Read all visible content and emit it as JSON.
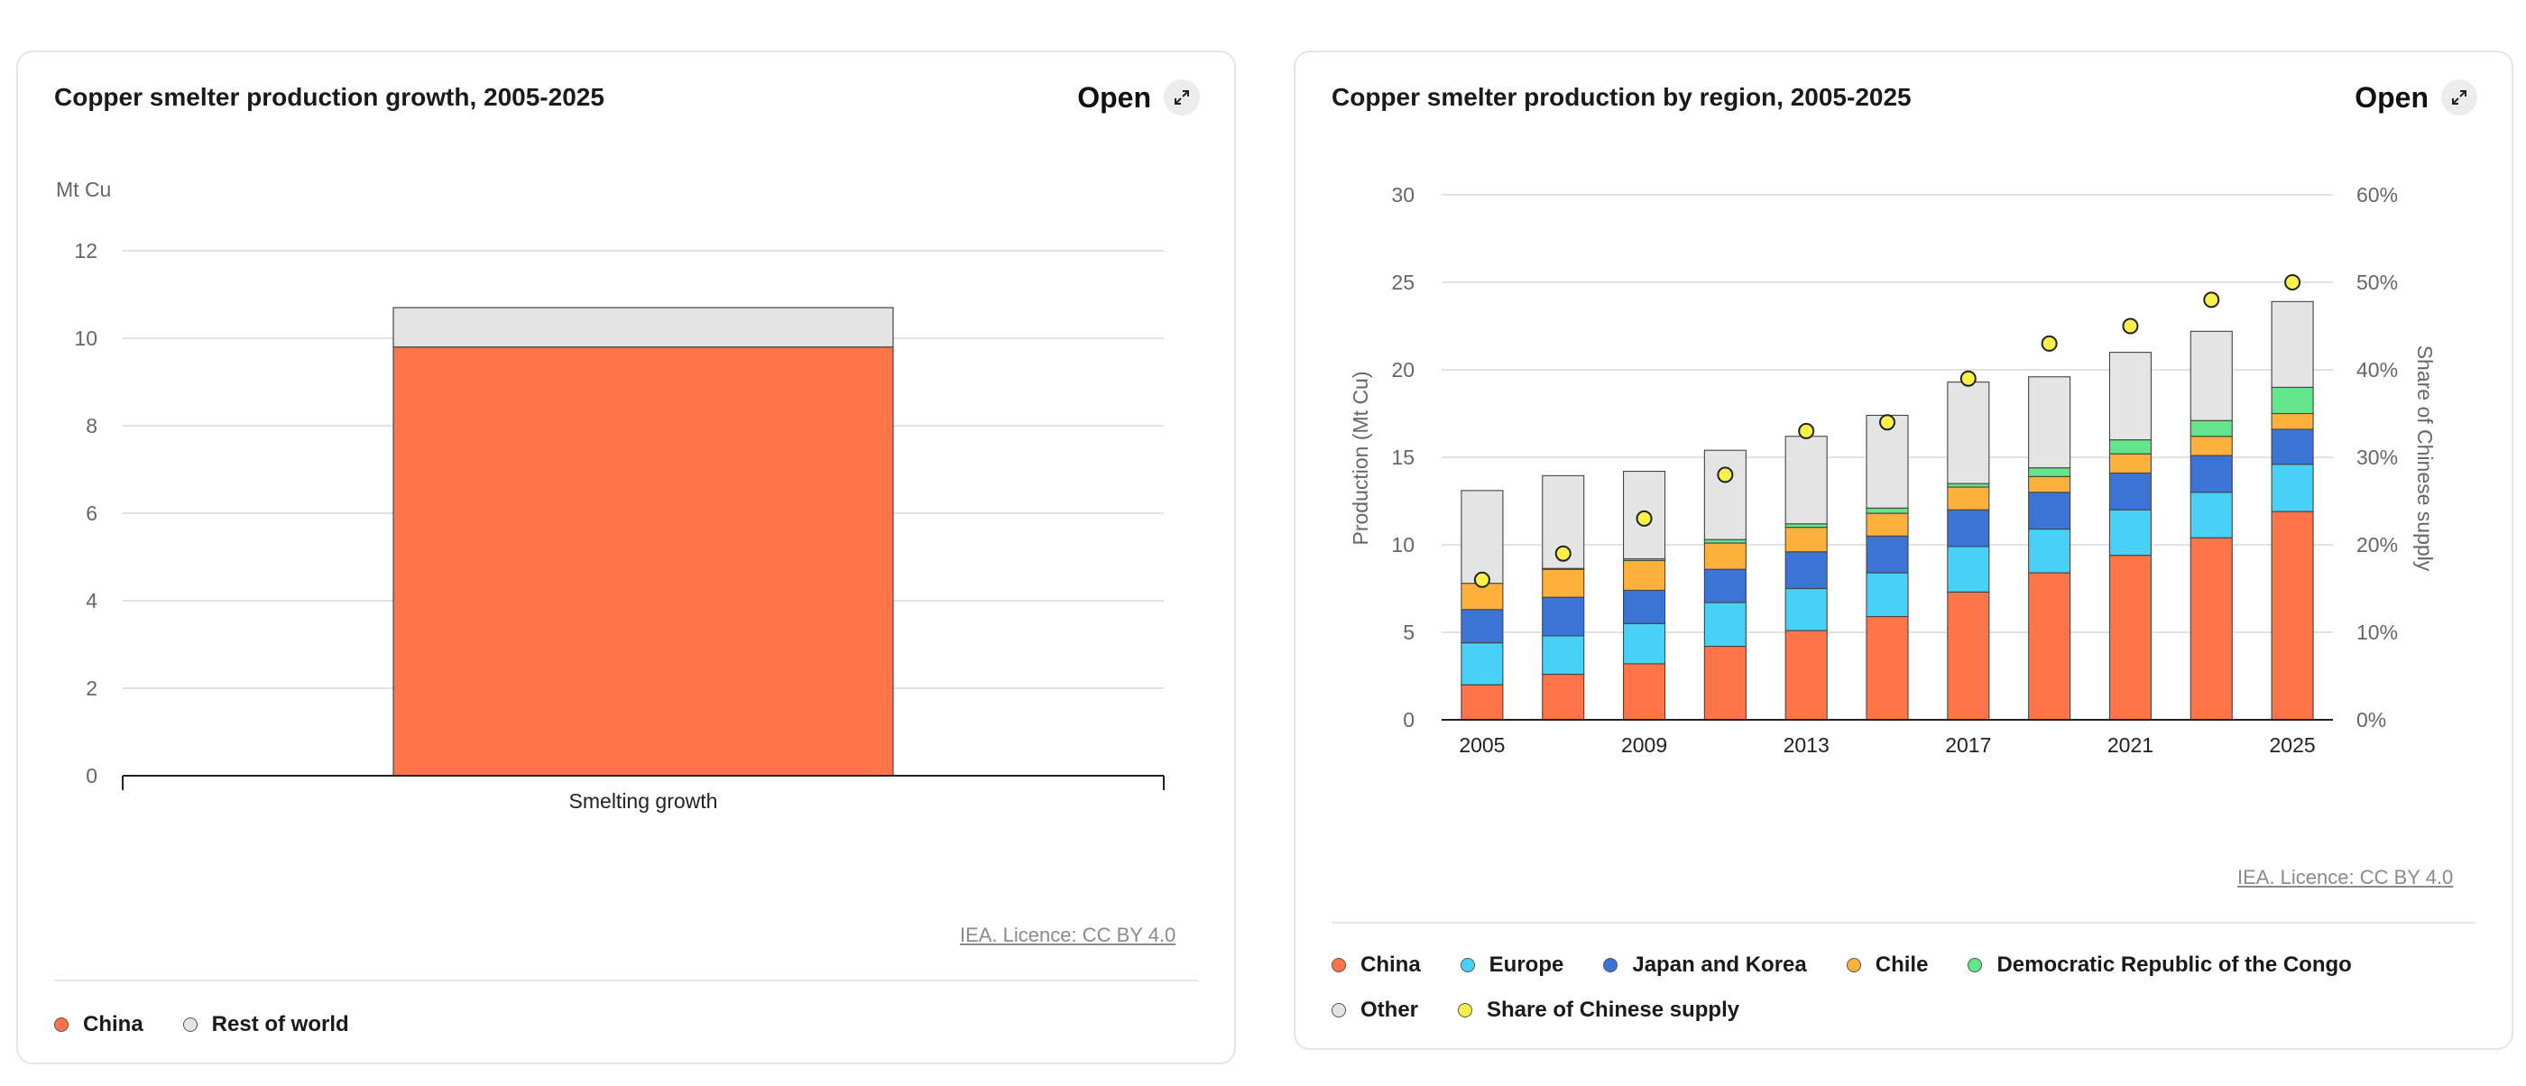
{
  "panels": [
    {
      "title": "Copper smelter production growth, 2005-2025",
      "open_label": "Open",
      "licence": "IEA. Licence: CC BY 4.0",
      "legend": [
        {
          "label": "China",
          "color": "#ff7549"
        },
        {
          "label": "Rest of world",
          "color": "#e4e4e4"
        }
      ]
    },
    {
      "title": "Copper smelter production by region, 2005-2025",
      "open_label": "Open",
      "licence": "IEA. Licence: CC BY 4.0",
      "legend": [
        {
          "label": "China",
          "color": "#ff7549"
        },
        {
          "label": "Europe",
          "color": "#48d0f7"
        },
        {
          "label": "Japan and Korea",
          "color": "#3c74d6"
        },
        {
          "label": "Chile",
          "color": "#fbb13c"
        },
        {
          "label": "Democratic Republic of the Congo",
          "color": "#63e58b"
        },
        {
          "label": "Other",
          "color": "#e4e4e4"
        },
        {
          "label": "Share of Chinese supply",
          "color": "#fbef4a"
        }
      ]
    }
  ],
  "chart_data": [
    {
      "type": "bar",
      "stacked": true,
      "title": "Copper smelter production growth, 2005-2025",
      "unit_label": "Mt Cu",
      "categories": [
        "Smelting growth"
      ],
      "yticks": [
        0,
        2,
        4,
        6,
        8,
        10,
        12
      ],
      "ylim": [
        0,
        12
      ],
      "grid": true,
      "legend_position": "bottom",
      "series": [
        {
          "name": "China",
          "values": [
            9.8
          ],
          "color": "#ff7549"
        },
        {
          "name": "Rest of world",
          "values": [
            0.9
          ],
          "color": "#e4e4e4"
        }
      ]
    },
    {
      "type": "bar",
      "stacked": true,
      "title": "Copper smelter production by region, 2005-2025",
      "ylabel": "Production (Mt Cu)",
      "y2label": "Share of Chinese supply",
      "x": [
        2005,
        2007,
        2009,
        2011,
        2013,
        2015,
        2017,
        2019,
        2021,
        2023,
        2025
      ],
      "xticks": [
        "2005",
        "2009",
        "2013",
        "2017",
        "2021",
        "2025"
      ],
      "yticks": [
        0,
        5,
        10,
        15,
        20,
        25,
        30
      ],
      "ylim": [
        0,
        30
      ],
      "y2ticks": [
        "0%",
        "10%",
        "20%",
        "30%",
        "40%",
        "50%",
        "60%"
      ],
      "y2lim": [
        0,
        60
      ],
      "grid": true,
      "legend_position": "bottom",
      "series": [
        {
          "name": "China",
          "color": "#ff7549",
          "values": [
            2.0,
            2.6,
            3.2,
            4.2,
            5.1,
            5.9,
            7.3,
            8.4,
            9.4,
            10.4,
            11.9
          ]
        },
        {
          "name": "Europe",
          "color": "#48d0f7",
          "values": [
            2.4,
            2.2,
            2.3,
            2.5,
            2.4,
            2.5,
            2.6,
            2.5,
            2.6,
            2.6,
            2.7
          ]
        },
        {
          "name": "Japan and Korea",
          "color": "#3c74d6",
          "values": [
            1.9,
            2.2,
            1.9,
            1.9,
            2.1,
            2.1,
            2.1,
            2.1,
            2.1,
            2.1,
            2.0
          ]
        },
        {
          "name": "Chile",
          "color": "#fbb13c",
          "values": [
            1.5,
            1.6,
            1.7,
            1.5,
            1.4,
            1.3,
            1.3,
            0.9,
            1.1,
            1.1,
            0.9
          ]
        },
        {
          "name": "Democratic Republic of the Congo",
          "color": "#63e58b",
          "values": [
            0.0,
            0.05,
            0.1,
            0.2,
            0.2,
            0.3,
            0.2,
            0.5,
            0.8,
            0.9,
            1.5
          ]
        },
        {
          "name": "Other",
          "color": "#e4e4e4",
          "values": [
            5.3,
            5.3,
            5.0,
            5.1,
            5.0,
            5.3,
            5.8,
            5.2,
            5.0,
            5.1,
            4.9
          ]
        },
        {
          "name": "Share of Chinese supply",
          "axis": "right",
          "type": "scatter",
          "color": "#fbef4a",
          "values": [
            16,
            19,
            23,
            28,
            33,
            34,
            39,
            43,
            45,
            48,
            50
          ]
        }
      ]
    }
  ]
}
